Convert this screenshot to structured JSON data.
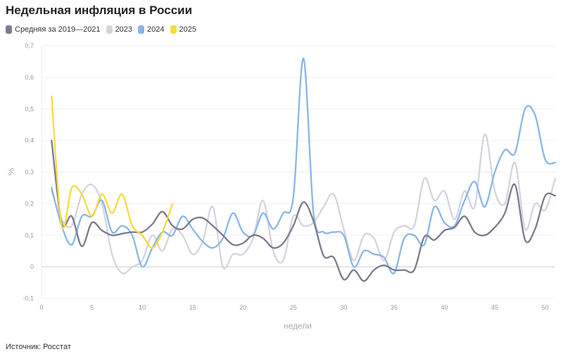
{
  "chart_data": {
    "type": "line",
    "title": "Недельная инфляция в России",
    "xlabel": "недели",
    "ylabel": "%",
    "xlim": [
      0,
      51
    ],
    "ylim": [
      -0.1,
      0.7
    ],
    "x_ticks": [
      0,
      5,
      10,
      15,
      20,
      25,
      30,
      35,
      40,
      45,
      50
    ],
    "y_ticks": [
      "-0,1",
      "0",
      "0,1",
      "0,2",
      "0,3",
      "0,4",
      "0,5",
      "0,6",
      "0,7"
    ],
    "y_tick_values": [
      -0.1,
      0,
      0.1,
      0.2,
      0.3,
      0.4,
      0.5,
      0.6,
      0.7
    ],
    "legend_position": "top-left",
    "series": [
      {
        "name": "Средняя за 2019—2021",
        "color": "#7b7a8e",
        "points": [
          [
            1,
            0.4
          ],
          [
            2,
            0.14
          ],
          [
            3,
            0.16
          ],
          [
            4,
            0.065
          ],
          [
            5,
            0.14
          ],
          [
            6,
            0.115
          ],
          [
            7,
            0.1
          ],
          [
            8,
            0.105
          ],
          [
            9,
            0.11
          ],
          [
            10,
            0.11
          ],
          [
            11,
            0.135
          ],
          [
            12,
            0.175
          ],
          [
            13,
            0.13
          ],
          [
            14,
            0.12
          ],
          [
            15,
            0.15
          ],
          [
            16,
            0.155
          ],
          [
            17,
            0.13
          ],
          [
            18,
            0.1
          ],
          [
            19,
            0.07
          ],
          [
            20,
            0.075
          ],
          [
            21,
            0.1
          ],
          [
            22,
            0.09
          ],
          [
            23,
            0.06
          ],
          [
            24,
            0.075
          ],
          [
            25,
            0.13
          ],
          [
            26,
            0.205
          ],
          [
            27,
            0.145
          ],
          [
            28,
            0.035
          ],
          [
            29,
            0.03
          ],
          [
            30,
            -0.04
          ],
          [
            31,
            -0.01
          ],
          [
            32,
            -0.045
          ],
          [
            33,
            -0.01
          ],
          [
            34,
            0.005
          ],
          [
            35,
            -0.01
          ],
          [
            36,
            -0.01
          ],
          [
            37,
            -0.01
          ],
          [
            38,
            0.095
          ],
          [
            39,
            0.085
          ],
          [
            40,
            0.115
          ],
          [
            41,
            0.125
          ],
          [
            42,
            0.16
          ],
          [
            43,
            0.11
          ],
          [
            44,
            0.1
          ],
          [
            45,
            0.125
          ],
          [
            46,
            0.17
          ],
          [
            47,
            0.26
          ],
          [
            48,
            0.085
          ],
          [
            49,
            0.12
          ],
          [
            50,
            0.225
          ],
          [
            51,
            0.225
          ]
        ]
      },
      {
        "name": "2023",
        "color": "#d5d3de",
        "points": [
          [
            1,
            0.24
          ],
          [
            2,
            0.15
          ],
          [
            3,
            0.13
          ],
          [
            4,
            0.23
          ],
          [
            5,
            0.26
          ],
          [
            6,
            0.2
          ],
          [
            7,
            0.04
          ],
          [
            8,
            -0.02
          ],
          [
            9,
            0.0
          ],
          [
            10,
            0.02
          ],
          [
            11,
            0.1
          ],
          [
            12,
            0.05
          ],
          [
            13,
            0.12
          ],
          [
            14,
            0.1
          ],
          [
            15,
            0.04
          ],
          [
            16,
            0.08
          ],
          [
            17,
            0.19
          ],
          [
            18,
            0.0
          ],
          [
            19,
            0.04
          ],
          [
            20,
            0.04
          ],
          [
            21,
            0.09
          ],
          [
            22,
            0.21
          ],
          [
            23,
            0.05
          ],
          [
            24,
            0.02
          ],
          [
            25,
            0.16
          ],
          [
            26,
            0.13
          ],
          [
            27,
            0.14
          ],
          [
            28,
            0.19
          ],
          [
            29,
            0.23
          ],
          [
            30,
            0.12
          ],
          [
            31,
            0.02
          ],
          [
            32,
            0.1
          ],
          [
            33,
            0.09
          ],
          [
            34,
            0.02
          ],
          [
            35,
            0.11
          ],
          [
            36,
            0.13
          ],
          [
            37,
            0.13
          ],
          [
            38,
            0.28
          ],
          [
            39,
            0.21
          ],
          [
            40,
            0.24
          ],
          [
            41,
            0.15
          ],
          [
            42,
            0.24
          ],
          [
            43,
            0.19
          ],
          [
            44,
            0.42
          ],
          [
            45,
            0.24
          ],
          [
            46,
            0.2
          ],
          [
            47,
            0.33
          ],
          [
            48,
            0.12
          ],
          [
            49,
            0.2
          ],
          [
            50,
            0.18
          ],
          [
            51,
            0.28
          ]
        ]
      },
      {
        "name": "2024",
        "color": "#8ab6e6",
        "points": [
          [
            1,
            0.25
          ],
          [
            2,
            0.13
          ],
          [
            3,
            0.07
          ],
          [
            4,
            0.16
          ],
          [
            5,
            0.16
          ],
          [
            6,
            0.21
          ],
          [
            7,
            0.11
          ],
          [
            8,
            0.13
          ],
          [
            9,
            0.1
          ],
          [
            10,
            0.0
          ],
          [
            11,
            0.06
          ],
          [
            12,
            0.11
          ],
          [
            13,
            0.1
          ],
          [
            14,
            0.16
          ],
          [
            15,
            0.12
          ],
          [
            16,
            0.08
          ],
          [
            17,
            0.06
          ],
          [
            18,
            0.09
          ],
          [
            19,
            0.17
          ],
          [
            20,
            0.11
          ],
          [
            21,
            0.1
          ],
          [
            22,
            0.17
          ],
          [
            23,
            0.12
          ],
          [
            24,
            0.17
          ],
          [
            25,
            0.22
          ],
          [
            26,
            0.66
          ],
          [
            27,
            0.17
          ],
          [
            28,
            0.11
          ],
          [
            29,
            0.11
          ],
          [
            30,
            0.1
          ],
          [
            31,
            0.0
          ],
          [
            32,
            0.05
          ],
          [
            33,
            0.04
          ],
          [
            34,
            0.03
          ],
          [
            35,
            -0.02
          ],
          [
            36,
            0.09
          ],
          [
            37,
            0.1
          ],
          [
            38,
            0.07
          ],
          [
            39,
            0.19
          ],
          [
            40,
            0.14
          ],
          [
            41,
            0.13
          ],
          [
            42,
            0.21
          ],
          [
            43,
            0.27
          ],
          [
            44,
            0.19
          ],
          [
            45,
            0.3
          ],
          [
            46,
            0.37
          ],
          [
            47,
            0.36
          ],
          [
            48,
            0.5
          ],
          [
            49,
            0.48
          ],
          [
            50,
            0.34
          ],
          [
            51,
            0.33
          ]
        ]
      },
      {
        "name": "2025",
        "color": "#f7dc3c",
        "points": [
          [
            1,
            0.54
          ],
          [
            2,
            0.13
          ],
          [
            3,
            0.25
          ],
          [
            4,
            0.23
          ],
          [
            5,
            0.16
          ],
          [
            6,
            0.23
          ],
          [
            7,
            0.17
          ],
          [
            8,
            0.23
          ],
          [
            9,
            0.13
          ],
          [
            10,
            0.1
          ],
          [
            11,
            0.06
          ],
          [
            12,
            0.11
          ],
          [
            13,
            0.2
          ]
        ]
      }
    ],
    "source": "Источник: Росстат"
  }
}
